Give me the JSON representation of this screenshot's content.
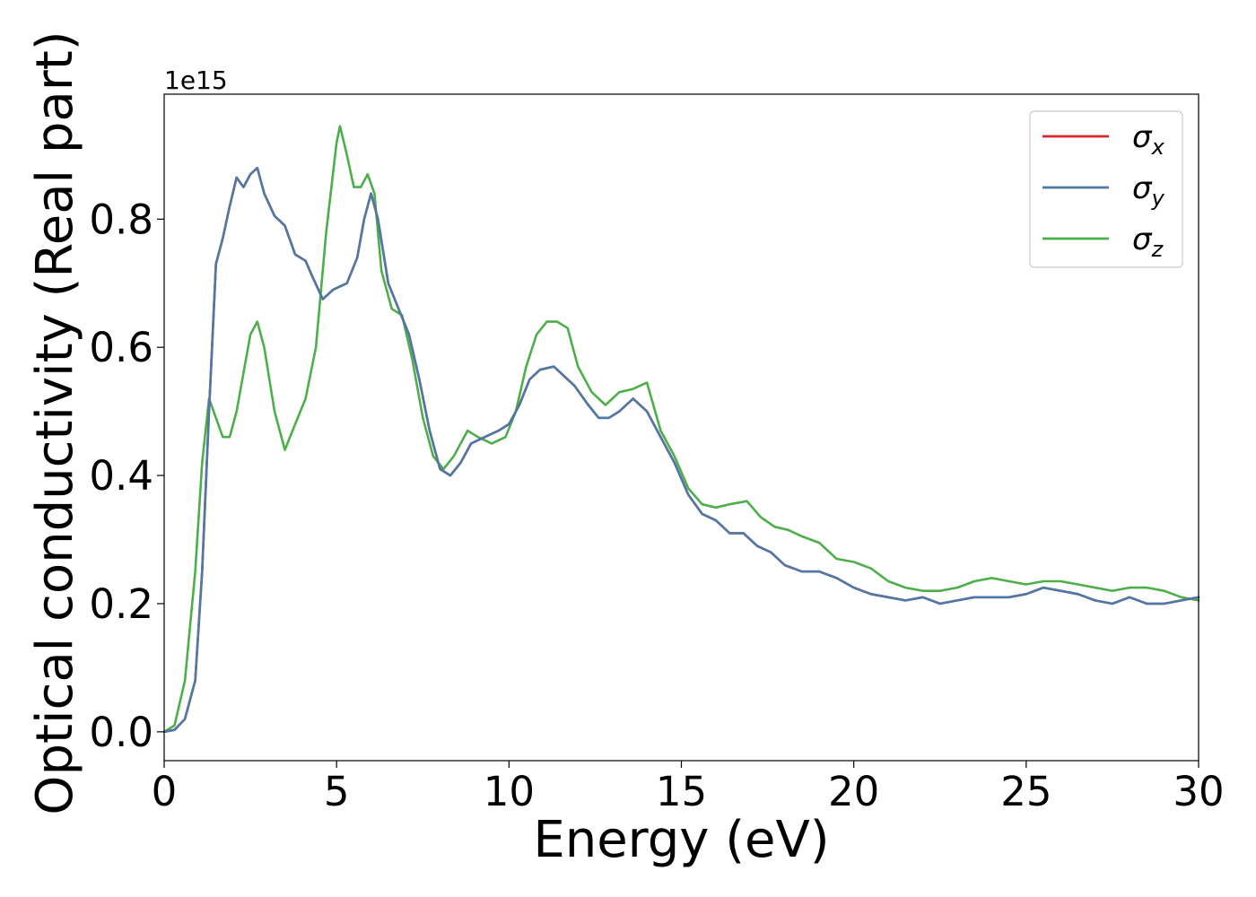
{
  "chart_data": {
    "type": "line",
    "title": "",
    "xlabel": "Energy (eV)",
    "ylabel": "Optical conductivity (Real part)",
    "y_offset_label": "1e15",
    "xlim": [
      0,
      30
    ],
    "ylim": [
      -0.045,
      0.995
    ],
    "xticks": [
      "0",
      "5",
      "10",
      "15",
      "20",
      "25",
      "30"
    ],
    "yticks": [
      "0.0",
      "0.2",
      "0.4",
      "0.6",
      "0.8"
    ],
    "grid": false,
    "legend_position": "top-right",
    "series": [
      {
        "name": "σx",
        "color": "#d62728",
        "x": [
          0,
          0.3,
          0.6,
          0.9,
          1.1,
          1.3,
          1.5,
          1.7,
          1.9,
          2.1,
          2.3,
          2.5,
          2.7,
          2.9,
          3.2,
          3.5,
          3.8,
          4.1,
          4.3,
          4.6,
          4.9,
          5.3,
          5.6,
          5.8,
          6.0,
          6.2,
          6.5,
          6.8,
          7.1,
          7.4,
          7.7,
          8.0,
          8.3,
          8.6,
          8.9,
          9.3,
          9.7,
          10.0,
          10.3,
          10.6,
          10.9,
          11.3,
          11.6,
          11.9,
          12.3,
          12.6,
          12.9,
          13.2,
          13.6,
          14.0,
          14.4,
          14.8,
          15.2,
          15.6,
          16.0,
          16.4,
          16.8,
          17.2,
          17.6,
          18.0,
          18.5,
          19.0,
          19.5,
          20.0,
          20.5,
          21.0,
          21.5,
          22.0,
          22.5,
          23.0,
          23.5,
          24.0,
          24.5,
          25.0,
          25.5,
          26.0,
          26.5,
          27.0,
          27.5,
          28.0,
          28.5,
          29.0,
          29.5,
          30.0
        ],
        "values": [
          0.0,
          0.003,
          0.02,
          0.08,
          0.25,
          0.5,
          0.73,
          0.77,
          0.82,
          0.865,
          0.85,
          0.87,
          0.88,
          0.84,
          0.805,
          0.79,
          0.745,
          0.735,
          0.71,
          0.675,
          0.69,
          0.7,
          0.74,
          0.8,
          0.84,
          0.8,
          0.7,
          0.66,
          0.62,
          0.55,
          0.47,
          0.41,
          0.4,
          0.42,
          0.45,
          0.46,
          0.47,
          0.48,
          0.51,
          0.55,
          0.565,
          0.57,
          0.555,
          0.54,
          0.51,
          0.49,
          0.49,
          0.5,
          0.52,
          0.5,
          0.46,
          0.42,
          0.37,
          0.34,
          0.33,
          0.31,
          0.31,
          0.29,
          0.28,
          0.26,
          0.25,
          0.25,
          0.24,
          0.225,
          0.215,
          0.21,
          0.205,
          0.21,
          0.2,
          0.205,
          0.21,
          0.21,
          0.21,
          0.215,
          0.225,
          0.22,
          0.215,
          0.205,
          0.2,
          0.21,
          0.2,
          0.2,
          0.205,
          0.21
        ]
      },
      {
        "name": "σy",
        "color": "#4e79a7",
        "x": [
          0,
          0.3,
          0.6,
          0.9,
          1.1,
          1.3,
          1.5,
          1.7,
          1.9,
          2.1,
          2.3,
          2.5,
          2.7,
          2.9,
          3.2,
          3.5,
          3.8,
          4.1,
          4.3,
          4.6,
          4.9,
          5.3,
          5.6,
          5.8,
          6.0,
          6.2,
          6.5,
          6.8,
          7.1,
          7.4,
          7.7,
          8.0,
          8.3,
          8.6,
          8.9,
          9.3,
          9.7,
          10.0,
          10.3,
          10.6,
          10.9,
          11.3,
          11.6,
          11.9,
          12.3,
          12.6,
          12.9,
          13.2,
          13.6,
          14.0,
          14.4,
          14.8,
          15.2,
          15.6,
          16.0,
          16.4,
          16.8,
          17.2,
          17.6,
          18.0,
          18.5,
          19.0,
          19.5,
          20.0,
          20.5,
          21.0,
          21.5,
          22.0,
          22.5,
          23.0,
          23.5,
          24.0,
          24.5,
          25.0,
          25.5,
          26.0,
          26.5,
          27.0,
          27.5,
          28.0,
          28.5,
          29.0,
          29.5,
          30.0
        ],
        "values": [
          0.0,
          0.003,
          0.02,
          0.08,
          0.25,
          0.5,
          0.73,
          0.77,
          0.82,
          0.865,
          0.85,
          0.87,
          0.88,
          0.84,
          0.805,
          0.79,
          0.745,
          0.735,
          0.71,
          0.675,
          0.69,
          0.7,
          0.74,
          0.8,
          0.84,
          0.8,
          0.7,
          0.66,
          0.62,
          0.55,
          0.47,
          0.41,
          0.4,
          0.42,
          0.45,
          0.46,
          0.47,
          0.48,
          0.51,
          0.55,
          0.565,
          0.57,
          0.555,
          0.54,
          0.51,
          0.49,
          0.49,
          0.5,
          0.52,
          0.5,
          0.46,
          0.42,
          0.37,
          0.34,
          0.33,
          0.31,
          0.31,
          0.29,
          0.28,
          0.26,
          0.25,
          0.25,
          0.24,
          0.225,
          0.215,
          0.21,
          0.205,
          0.21,
          0.2,
          0.205,
          0.21,
          0.21,
          0.21,
          0.215,
          0.225,
          0.22,
          0.215,
          0.205,
          0.2,
          0.21,
          0.2,
          0.2,
          0.205,
          0.21
        ]
      },
      {
        "name": "σz",
        "color": "#4daf4a",
        "x": [
          0,
          0.3,
          0.6,
          0.9,
          1.1,
          1.3,
          1.5,
          1.7,
          1.9,
          2.1,
          2.3,
          2.5,
          2.7,
          2.9,
          3.2,
          3.5,
          3.8,
          4.1,
          4.4,
          4.7,
          5.0,
          5.1,
          5.3,
          5.5,
          5.7,
          5.9,
          6.1,
          6.3,
          6.6,
          6.9,
          7.2,
          7.5,
          7.8,
          8.1,
          8.4,
          8.8,
          9.1,
          9.5,
          9.9,
          10.2,
          10.5,
          10.8,
          11.1,
          11.4,
          11.7,
          12.0,
          12.4,
          12.8,
          13.2,
          13.6,
          14.0,
          14.4,
          14.8,
          15.2,
          15.6,
          16.0,
          16.4,
          16.9,
          17.3,
          17.7,
          18.1,
          18.5,
          19.0,
          19.5,
          20.0,
          20.5,
          21.0,
          21.5,
          22.0,
          22.5,
          23.0,
          23.5,
          24.0,
          24.5,
          25.0,
          25.5,
          26.0,
          26.5,
          27.0,
          27.5,
          28.0,
          28.5,
          29.0,
          29.5,
          30.0
        ],
        "values": [
          0.0,
          0.01,
          0.08,
          0.25,
          0.42,
          0.52,
          0.49,
          0.46,
          0.46,
          0.5,
          0.56,
          0.62,
          0.64,
          0.6,
          0.5,
          0.44,
          0.48,
          0.52,
          0.6,
          0.78,
          0.92,
          0.945,
          0.9,
          0.85,
          0.85,
          0.87,
          0.84,
          0.72,
          0.66,
          0.65,
          0.58,
          0.49,
          0.43,
          0.41,
          0.43,
          0.47,
          0.46,
          0.45,
          0.46,
          0.5,
          0.57,
          0.62,
          0.64,
          0.64,
          0.63,
          0.57,
          0.53,
          0.51,
          0.53,
          0.535,
          0.545,
          0.47,
          0.43,
          0.38,
          0.355,
          0.35,
          0.355,
          0.36,
          0.335,
          0.32,
          0.315,
          0.305,
          0.295,
          0.27,
          0.265,
          0.255,
          0.235,
          0.225,
          0.22,
          0.22,
          0.225,
          0.235,
          0.24,
          0.235,
          0.23,
          0.235,
          0.235,
          0.23,
          0.225,
          0.22,
          0.225,
          0.225,
          0.22,
          0.21,
          0.205
        ]
      }
    ]
  }
}
